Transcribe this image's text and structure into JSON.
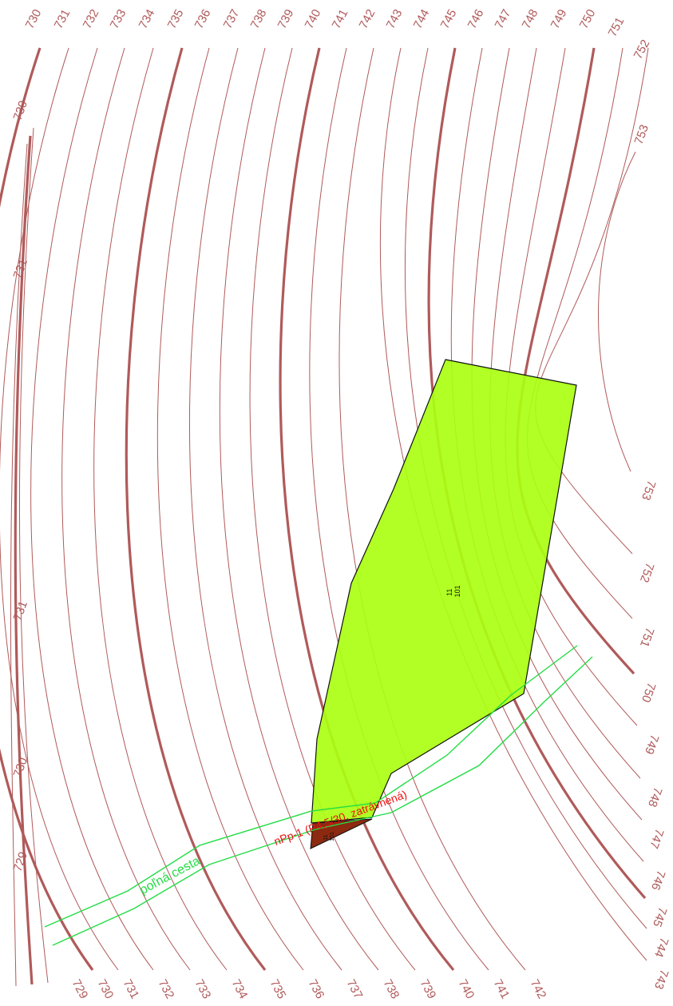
{
  "map": {
    "contour_color": "#b05a5a",
    "parcel_fill": "#aaff11",
    "small_parcel_fill": "#8b2a10",
    "road_color": "#22dd44",
    "road_desc_color": "#ee1111"
  },
  "contours": {
    "top_labels": [
      "730",
      "731",
      "732",
      "733",
      "734",
      "735",
      "736",
      "737",
      "738",
      "739",
      "740",
      "741",
      "742",
      "743",
      "744",
      "745",
      "746",
      "747",
      "748",
      "749",
      "750",
      "751",
      "752"
    ],
    "left_labels": [
      "730",
      "731",
      "731",
      "730",
      "729"
    ],
    "right_top_label": "753",
    "right_labels": [
      "753",
      "752",
      "751",
      "750",
      "749",
      "748",
      "747",
      "746",
      "745",
      "744",
      "743"
    ],
    "bottom_labels": [
      "729",
      "730",
      "731",
      "732",
      "733",
      "734",
      "735",
      "736",
      "737",
      "738",
      "739",
      "740",
      "741",
      "742"
    ],
    "index_elevations": [
      730,
      735,
      740,
      745,
      750
    ]
  },
  "parcel": {
    "line1": "11",
    "line2": "101"
  },
  "small_parcel": {
    "line1": "11",
    "line2": "101"
  },
  "road": {
    "name": "poľná cesta",
    "description": "nPp-1 (P4,5/30, zatrávnená)"
  }
}
